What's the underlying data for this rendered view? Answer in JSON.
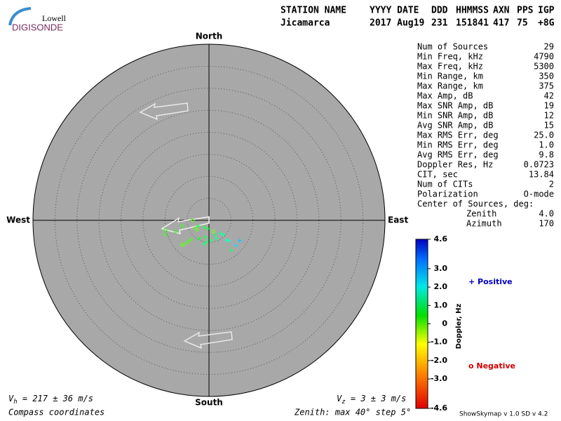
{
  "chart_data": {
    "type": "skymap",
    "logo": {
      "top": "Lowell",
      "bottom": "DIGISONDE"
    },
    "header": [
      {
        "name": "STATION NAME",
        "value": "Jicamarca"
      },
      {
        "name": "YYYY DATE",
        "value": "2017 Aug19"
      },
      {
        "name": "DDD",
        "value": "231"
      },
      {
        "name": "HHMMSS",
        "value": "151841"
      },
      {
        "name": "AXN",
        "value": "417"
      },
      {
        "name": "PPS",
        "value": "75"
      },
      {
        "name": "IGP",
        "value": "+8G"
      }
    ],
    "compass": {
      "north": "North",
      "south": "South",
      "east": "East",
      "west": "West"
    },
    "rlim": [
      0,
      40
    ],
    "rticks": [
      5,
      10,
      15,
      20,
      25,
      30,
      35,
      40
    ],
    "x": [
      -3.7,
      -9.9,
      -10.0,
      -3.2,
      -2.7,
      1.0,
      -4.1,
      -4.8,
      -5.6,
      -6.2,
      -6.1,
      -7.6,
      -2.4,
      -1.0,
      -0.2,
      -0.8,
      -0.6,
      -1.1,
      1.3,
      2.7,
      3.3,
      1.8,
      4.0,
      4.6,
      6.1,
      7.0,
      5.1,
      0.6,
      -2.2
    ],
    "y": [
      0.0,
      -2.2,
      -3.2,
      -1.8,
      -2.1,
      -2.5,
      -4.3,
      -4.9,
      -5.4,
      -5.6,
      -1.3,
      -2.5,
      -1.3,
      -1.6,
      -1.9,
      -3.8,
      -4.9,
      -5.4,
      -3.3,
      -3.0,
      -3.3,
      -4.1,
      -4.5,
      -4.6,
      -5.7,
      -4.6,
      -6.8,
      -4.5,
      -4.1
    ],
    "doppler": [
      -0.8,
      -0.2,
      -0.3,
      -0.6,
      -0.7,
      -0.9,
      -0.4,
      -0.5,
      -0.6,
      -0.8,
      -0.3,
      -0.2,
      0.4,
      0.5,
      0.3,
      0.6,
      0.8,
      0.9,
      0.7,
      1.3,
      1.4,
      1.1,
      1.5,
      1.8,
      2.6,
      2.8,
      0.6,
      0.8,
      0.2
    ],
    "stats": [
      {
        "label": "Num of Sources",
        "value": "29"
      },
      {
        "label": "Min Freq, kHz",
        "value": "4790"
      },
      {
        "label": "Max Freq, kHz",
        "value": "5300"
      },
      {
        "label": "Min Range, km",
        "value": "350"
      },
      {
        "label": "Max Range, km",
        "value": "375"
      },
      {
        "label": "Max Amp, dB",
        "value": "42"
      },
      {
        "label": "Max SNR Amp, dB",
        "value": "19"
      },
      {
        "label": "Min SNR Amp, dB",
        "value": "12"
      },
      {
        "label": "Avg SNR Amp, dB",
        "value": "15"
      },
      {
        "label": "Max RMS Err, deg",
        "value": "25.0"
      },
      {
        "label": "Min RMS Err, deg",
        "value": "1.0"
      },
      {
        "label": "Avg RMS Err, deg",
        "value": "9.8"
      },
      {
        "label": "Doppler Res, Hz",
        "value": "0.0723"
      },
      {
        "label": "CIT, sec",
        "value": "13.84"
      },
      {
        "label": "Num of CITs",
        "value": "2"
      },
      {
        "label": "Polarization",
        "value": "O-mode"
      }
    ],
    "center_title": "Center of Sources, deg:",
    "center": [
      {
        "label": "Zenith",
        "value": "4.0"
      },
      {
        "label": "Azimuth",
        "value": "170"
      }
    ],
    "colorbar_label": "Doppler, Hz",
    "clim": [
      -4.6,
      4.6
    ],
    "cticks": [
      4.6,
      {
        "value": 3,
        "label": "3.0"
      },
      {
        "value": 2,
        "label": "2.0"
      },
      {
        "value": 1,
        "label": "1.0"
      },
      0,
      {
        "value": -1,
        "label": "-1.0"
      },
      {
        "value": -2,
        "label": "-2.0"
      },
      {
        "value": -3,
        "label": "-3.0"
      },
      -4.6
    ],
    "legend": {
      "positive": "+ Positive",
      "negative": "o Negative"
    },
    "vh": {
      "symbol": "V",
      "subscript": "h",
      "text": " = 217 ± 36 m/s"
    },
    "vz": {
      "symbol": "V",
      "subscript": "z",
      "text": " = 3 ± 3 m/s"
    },
    "coords_note": "Compass coordinates",
    "zenith_note": "Zenith: max 40°  step 5°",
    "version": "ShowSkymap v 1.0  SD v 4.2"
  }
}
